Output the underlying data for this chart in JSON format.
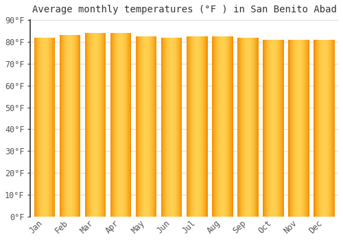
{
  "title": "Average monthly temperatures (°F ) in San Benito Abad",
  "months": [
    "Jan",
    "Feb",
    "Mar",
    "Apr",
    "May",
    "Jun",
    "Jul",
    "Aug",
    "Sep",
    "Oct",
    "Nov",
    "Dec"
  ],
  "values": [
    82,
    83,
    84,
    84,
    82.5,
    82,
    82.5,
    82.5,
    82,
    81,
    81,
    81
  ],
  "ylim": [
    0,
    90
  ],
  "yticks": [
    0,
    10,
    20,
    30,
    40,
    50,
    60,
    70,
    80,
    90
  ],
  "ytick_labels": [
    "0°F",
    "10°F",
    "20°F",
    "30°F",
    "40°F",
    "50°F",
    "60°F",
    "70°F",
    "80°F",
    "90°F"
  ],
  "bar_color_center": "#FFD050",
  "bar_color_edge": "#F59000",
  "background_color": "#FFFFFF",
  "plot_bg_color": "#FFFFFF",
  "grid_color": "#DDDDDD",
  "title_fontsize": 10,
  "tick_fontsize": 8.5,
  "font_family": "monospace",
  "bar_width": 0.82
}
